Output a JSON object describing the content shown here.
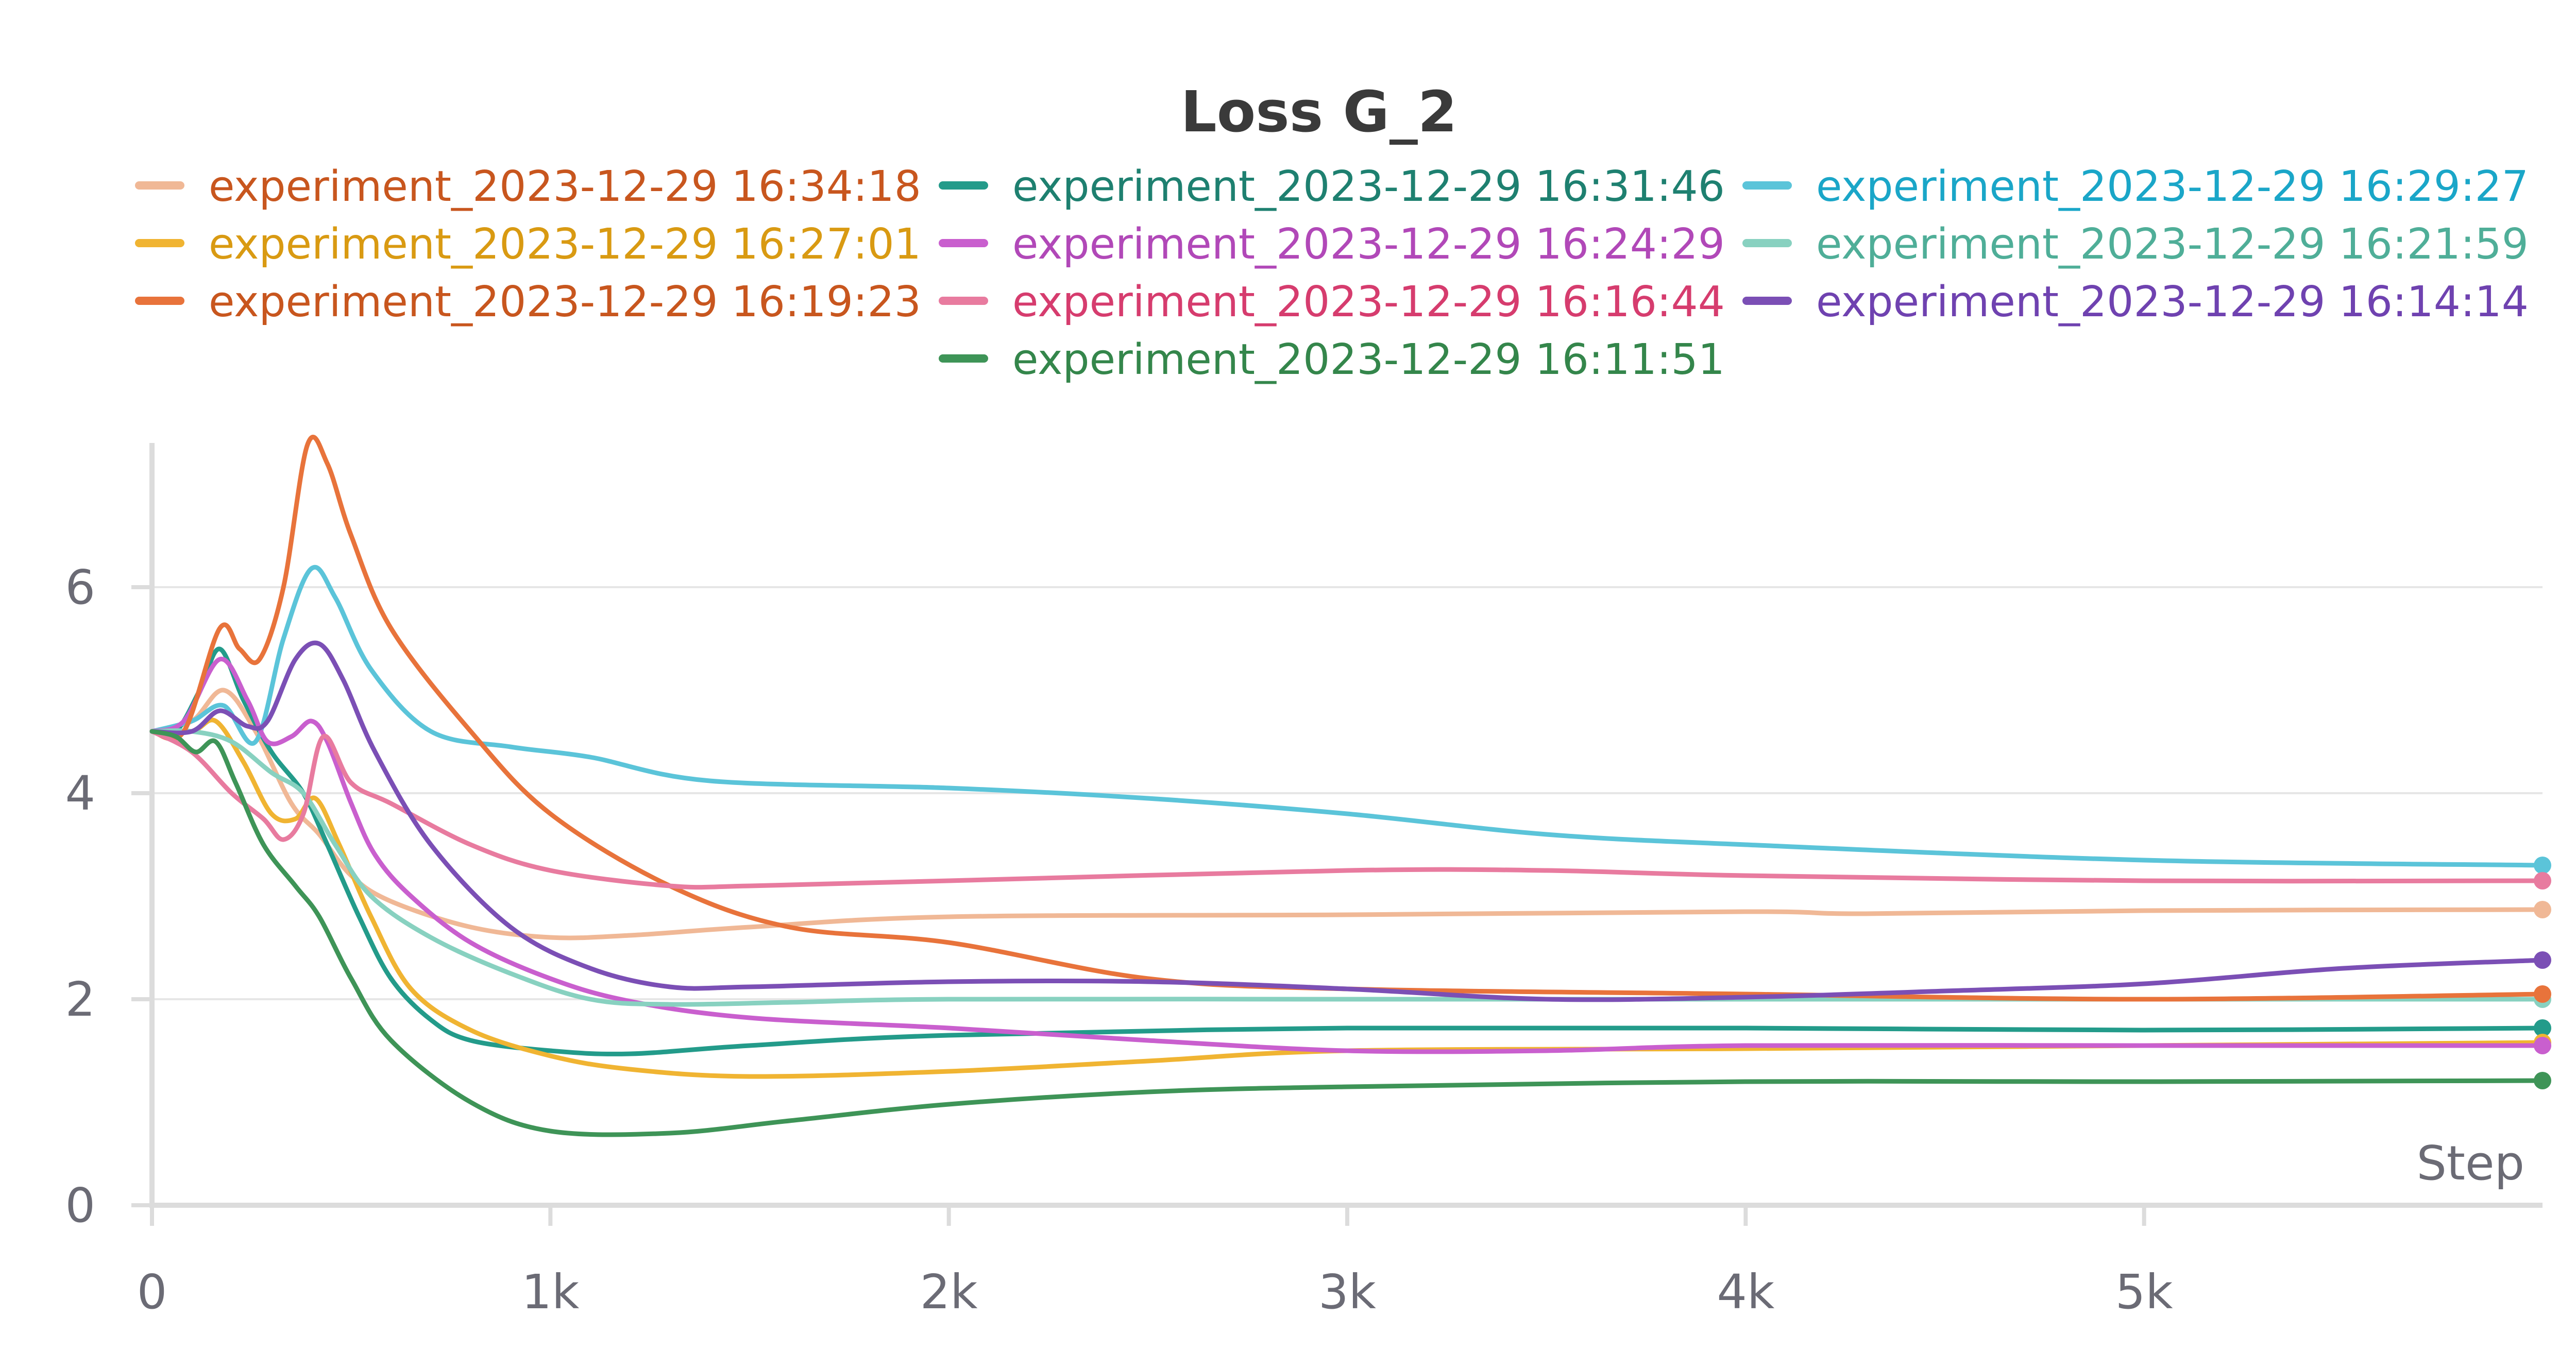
{
  "chart_data": {
    "type": "line",
    "title": "Loss G_2",
    "xlabel": "Step",
    "ylabel": "",
    "xlim": [
      0,
      6000
    ],
    "ylim": [
      0,
      7.4
    ],
    "x_ticks": [
      0,
      1000,
      2000,
      3000,
      4000,
      5000
    ],
    "x_tick_labels": [
      "0",
      "1k",
      "2k",
      "3k",
      "4k",
      "5k"
    ],
    "y_ticks": [
      0,
      2,
      4,
      6
    ],
    "y_tick_labels": [
      "0",
      "2",
      "4",
      "6"
    ],
    "grid": "horizontal",
    "legend_position": "top",
    "series": [
      {
        "name": "experiment_2023-12-29 16:34:18",
        "color": "#f0b896",
        "text_color": "#c8561e",
        "points": [
          [
            0,
            4.6
          ],
          [
            100,
            4.7
          ],
          [
            180,
            5.0
          ],
          [
            260,
            4.6
          ],
          [
            350,
            3.9
          ],
          [
            420,
            3.6
          ],
          [
            500,
            3.2
          ],
          [
            600,
            2.95
          ],
          [
            800,
            2.7
          ],
          [
            1000,
            2.6
          ],
          [
            1200,
            2.62
          ],
          [
            1500,
            2.7
          ],
          [
            2000,
            2.8
          ],
          [
            3000,
            2.82
          ],
          [
            4000,
            2.85
          ],
          [
            4300,
            2.83
          ],
          [
            5000,
            2.86
          ],
          [
            6000,
            2.87
          ]
        ]
      },
      {
        "name": "experiment_2023-12-29 16:31:46",
        "color": "#239b8a",
        "text_color": "#1e8070",
        "points": [
          [
            0,
            4.6
          ],
          [
            60,
            4.6
          ],
          [
            120,
            5.0
          ],
          [
            170,
            5.4
          ],
          [
            230,
            4.9
          ],
          [
            300,
            4.4
          ],
          [
            380,
            4.0
          ],
          [
            440,
            3.5
          ],
          [
            520,
            2.8
          ],
          [
            600,
            2.2
          ],
          [
            700,
            1.8
          ],
          [
            800,
            1.6
          ],
          [
            1000,
            1.5
          ],
          [
            1200,
            1.47
          ],
          [
            1500,
            1.55
          ],
          [
            2000,
            1.65
          ],
          [
            3000,
            1.72
          ],
          [
            4000,
            1.72
          ],
          [
            5000,
            1.7
          ],
          [
            6000,
            1.72
          ]
        ]
      },
      {
        "name": "experiment_2023-12-29 16:29:27",
        "color": "#5bc4d9",
        "text_color": "#1aa6c8",
        "points": [
          [
            0,
            4.6
          ],
          [
            100,
            4.7
          ],
          [
            180,
            4.85
          ],
          [
            260,
            4.5
          ],
          [
            330,
            5.5
          ],
          [
            400,
            6.18
          ],
          [
            460,
            5.9
          ],
          [
            550,
            5.2
          ],
          [
            700,
            4.6
          ],
          [
            900,
            4.45
          ],
          [
            1100,
            4.35
          ],
          [
            1400,
            4.12
          ],
          [
            2000,
            4.05
          ],
          [
            2500,
            3.95
          ],
          [
            3000,
            3.8
          ],
          [
            3500,
            3.6
          ],
          [
            4000,
            3.5
          ],
          [
            5000,
            3.35
          ],
          [
            6000,
            3.3
          ]
        ]
      },
      {
        "name": "experiment_2023-12-29 16:27:01",
        "color": "#f0b432",
        "text_color": "#d99a12",
        "points": [
          [
            0,
            4.6
          ],
          [
            100,
            4.6
          ],
          [
            160,
            4.7
          ],
          [
            230,
            4.3
          ],
          [
            300,
            3.8
          ],
          [
            360,
            3.75
          ],
          [
            410,
            3.95
          ],
          [
            470,
            3.5
          ],
          [
            550,
            2.8
          ],
          [
            650,
            2.1
          ],
          [
            800,
            1.7
          ],
          [
            1000,
            1.45
          ],
          [
            1200,
            1.32
          ],
          [
            1500,
            1.25
          ],
          [
            2000,
            1.3
          ],
          [
            2500,
            1.4
          ],
          [
            3000,
            1.5
          ],
          [
            4000,
            1.52
          ],
          [
            5000,
            1.55
          ],
          [
            6000,
            1.58
          ]
        ]
      },
      {
        "name": "experiment_2023-12-29 16:24:29",
        "color": "#c95fce",
        "text_color": "#b148b8",
        "points": [
          [
            0,
            4.6
          ],
          [
            80,
            4.7
          ],
          [
            170,
            5.3
          ],
          [
            240,
            4.9
          ],
          [
            290,
            4.5
          ],
          [
            350,
            4.55
          ],
          [
            400,
            4.7
          ],
          [
            440,
            4.5
          ],
          [
            500,
            3.9
          ],
          [
            560,
            3.4
          ],
          [
            650,
            3.0
          ],
          [
            800,
            2.55
          ],
          [
            1000,
            2.2
          ],
          [
            1200,
            1.98
          ],
          [
            1500,
            1.82
          ],
          [
            2000,
            1.72
          ],
          [
            2500,
            1.6
          ],
          [
            3000,
            1.5
          ],
          [
            3500,
            1.5
          ],
          [
            4000,
            1.55
          ],
          [
            5000,
            1.55
          ],
          [
            6000,
            1.55
          ]
        ]
      },
      {
        "name": "experiment_2023-12-29 16:21:59",
        "color": "#88d1c0",
        "text_color": "#4fae98",
        "points": [
          [
            0,
            4.6
          ],
          [
            100,
            4.6
          ],
          [
            200,
            4.5
          ],
          [
            300,
            4.2
          ],
          [
            380,
            4.0
          ],
          [
            460,
            3.5
          ],
          [
            550,
            3.0
          ],
          [
            700,
            2.6
          ],
          [
            900,
            2.25
          ],
          [
            1100,
            2.0
          ],
          [
            1300,
            1.95
          ],
          [
            1600,
            1.97
          ],
          [
            2000,
            2.0
          ],
          [
            3000,
            2.0
          ],
          [
            4000,
            2.0
          ],
          [
            5000,
            2.0
          ],
          [
            6000,
            2.0
          ]
        ]
      },
      {
        "name": "experiment_2023-12-29 16:19:23",
        "color": "#e8733b",
        "text_color": "#c8561e",
        "points": [
          [
            0,
            4.6
          ],
          [
            80,
            4.6
          ],
          [
            170,
            5.6
          ],
          [
            220,
            5.4
          ],
          [
            270,
            5.3
          ],
          [
            330,
            6.0
          ],
          [
            390,
            7.38
          ],
          [
            440,
            7.2
          ],
          [
            500,
            6.5
          ],
          [
            600,
            5.6
          ],
          [
            800,
            4.6
          ],
          [
            1000,
            3.8
          ],
          [
            1300,
            3.1
          ],
          [
            1600,
            2.7
          ],
          [
            2000,
            2.55
          ],
          [
            2500,
            2.2
          ],
          [
            3000,
            2.1
          ],
          [
            4000,
            2.05
          ],
          [
            5000,
            2.0
          ],
          [
            6000,
            2.05
          ]
        ]
      },
      {
        "name": "experiment_2023-12-29 16:16:44",
        "color": "#e87b9f",
        "text_color": "#d63c6e",
        "points": [
          [
            0,
            4.6
          ],
          [
            100,
            4.4
          ],
          [
            200,
            4.0
          ],
          [
            280,
            3.75
          ],
          [
            330,
            3.55
          ],
          [
            380,
            3.8
          ],
          [
            430,
            4.55
          ],
          [
            500,
            4.1
          ],
          [
            600,
            3.9
          ],
          [
            800,
            3.5
          ],
          [
            1000,
            3.25
          ],
          [
            1300,
            3.1
          ],
          [
            1500,
            3.1
          ],
          [
            2000,
            3.15
          ],
          [
            3000,
            3.25
          ],
          [
            3500,
            3.25
          ],
          [
            4000,
            3.2
          ],
          [
            5000,
            3.15
          ],
          [
            6000,
            3.15
          ]
        ]
      },
      {
        "name": "experiment_2023-12-29 16:14:14",
        "color": "#7b4fb5",
        "text_color": "#6f42b0",
        "points": [
          [
            0,
            4.6
          ],
          [
            100,
            4.6
          ],
          [
            170,
            4.8
          ],
          [
            240,
            4.65
          ],
          [
            290,
            4.7
          ],
          [
            360,
            5.3
          ],
          [
            420,
            5.45
          ],
          [
            480,
            5.1
          ],
          [
            560,
            4.4
          ],
          [
            700,
            3.5
          ],
          [
            900,
            2.7
          ],
          [
            1100,
            2.3
          ],
          [
            1300,
            2.12
          ],
          [
            1500,
            2.12
          ],
          [
            2000,
            2.17
          ],
          [
            2500,
            2.17
          ],
          [
            3000,
            2.1
          ],
          [
            3500,
            2.0
          ],
          [
            4000,
            2.02
          ],
          [
            4500,
            2.08
          ],
          [
            5000,
            2.15
          ],
          [
            5500,
            2.3
          ],
          [
            6000,
            2.38
          ]
        ]
      },
      {
        "name": "experiment_2023-12-29 16:11:51",
        "color": "#3e9457",
        "text_color": "#34864b",
        "points": [
          [
            0,
            4.6
          ],
          [
            60,
            4.55
          ],
          [
            110,
            4.4
          ],
          [
            160,
            4.5
          ],
          [
            210,
            4.1
          ],
          [
            280,
            3.5
          ],
          [
            360,
            3.1
          ],
          [
            420,
            2.8
          ],
          [
            500,
            2.2
          ],
          [
            600,
            1.6
          ],
          [
            800,
            1.0
          ],
          [
            1000,
            0.72
          ],
          [
            1300,
            0.7
          ],
          [
            1600,
            0.82
          ],
          [
            2000,
            0.98
          ],
          [
            2500,
            1.1
          ],
          [
            3000,
            1.15
          ],
          [
            4000,
            1.2
          ],
          [
            5000,
            1.2
          ],
          [
            6000,
            1.21
          ]
        ]
      }
    ]
  }
}
